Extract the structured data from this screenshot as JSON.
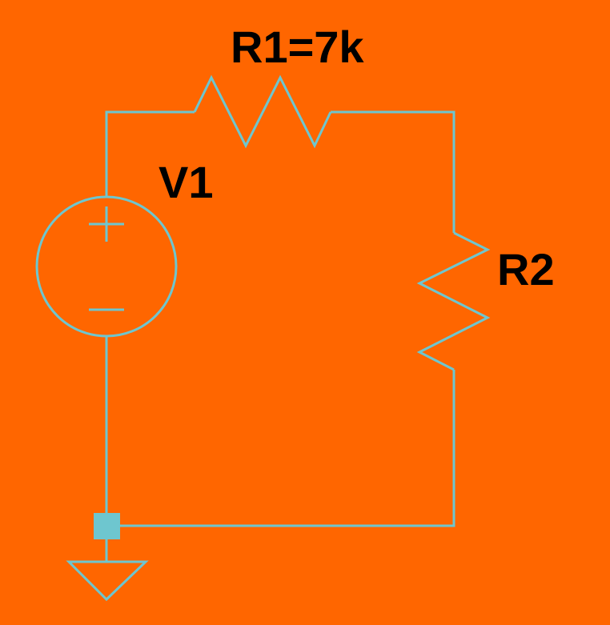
{
  "colors": {
    "background": "#FF6600",
    "wire": "#6EC6CF",
    "junction": "#6EC6CF",
    "label": "#000000"
  },
  "components": {
    "source": {
      "label": "V1",
      "icon": "voltage-source-icon"
    },
    "resistor1": {
      "label": "R1=7k",
      "icon": "resistor-icon"
    },
    "resistor2": {
      "label": "R2",
      "icon": "resistor-icon"
    },
    "ground": {
      "icon": "ground-icon"
    }
  }
}
